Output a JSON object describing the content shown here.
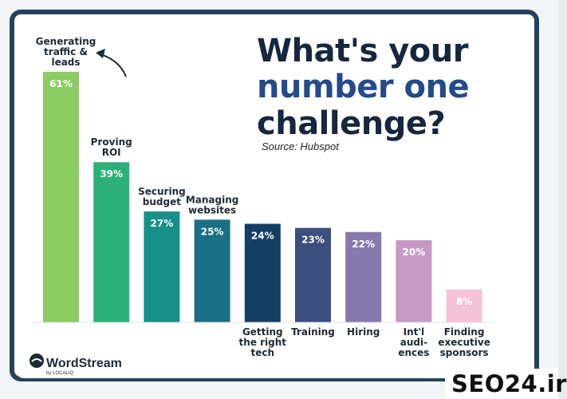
{
  "title": {
    "line1": "What's your",
    "line2": "number one",
    "line3": "challenge?"
  },
  "source": "Source: Hubspot",
  "brand": {
    "logo_text": "WordStream",
    "logo_sub": "by LOCALIQ"
  },
  "watermark": "SEO24.ir",
  "chart_data": {
    "type": "bar",
    "categories": [
      [
        "Generating",
        "traffic &",
        "leads"
      ],
      [
        "Proving",
        "ROI"
      ],
      [
        "Securing",
        "budget"
      ],
      [
        "Managing",
        "websites"
      ],
      [
        "Getting",
        "the right",
        "tech"
      ],
      [
        "Training"
      ],
      [
        "Hiring"
      ],
      [
        "Int'l",
        "audi-",
        "ences"
      ],
      [
        "Finding",
        "executive",
        "sponsors"
      ]
    ],
    "values": [
      61,
      39,
      27,
      25,
      24,
      23,
      22,
      20,
      8
    ],
    "value_labels": [
      "61%",
      "39%",
      "27%",
      "25%",
      "24%",
      "23%",
      "22%",
      "20%",
      "8%"
    ],
    "colors": [
      "#8ccd63",
      "#2bb079",
      "#18908a",
      "#1a6f86",
      "#163d63",
      "#3a4f7e",
      "#8878ad",
      "#c69ac4",
      "#f6c3d6"
    ],
    "ylim": [
      0,
      61
    ],
    "label_position": [
      "above",
      "above",
      "above",
      "above",
      "below",
      "below",
      "below",
      "below",
      "below"
    ]
  }
}
